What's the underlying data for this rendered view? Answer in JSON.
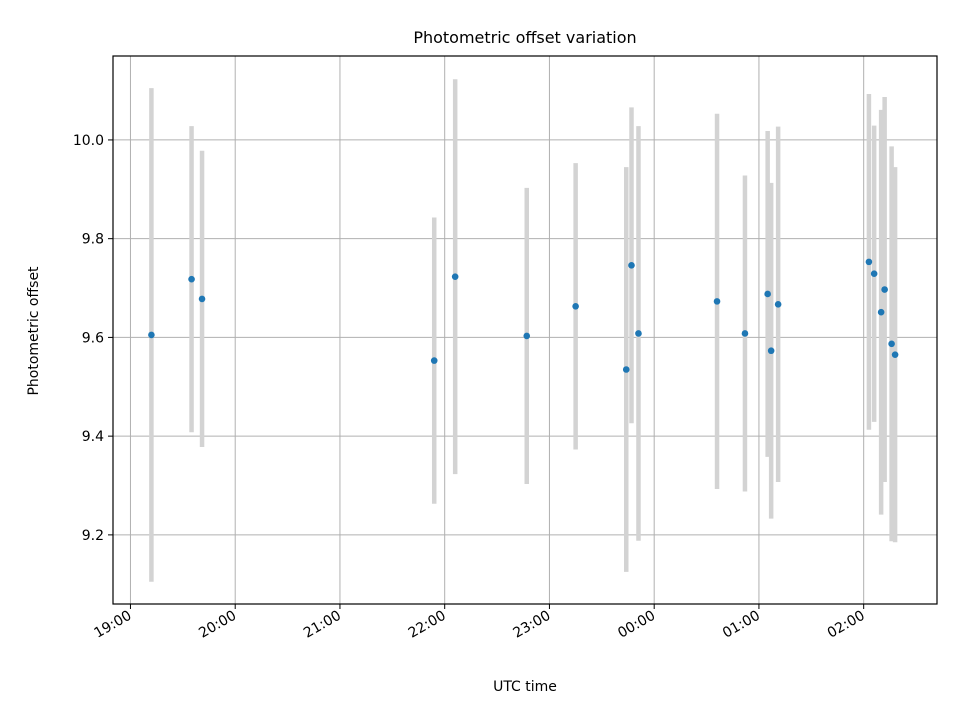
{
  "chart_data": {
    "type": "scatter",
    "title": "Photometric offset variation",
    "xlabel": "UTC time",
    "ylabel": "Photometric offset",
    "grid": true,
    "x_axis": {
      "unit": "time (HH:MM, UTC, spanning midnight)",
      "range": [
        "18:50",
        "02:42"
      ],
      "ticks": [
        "19:00",
        "20:00",
        "21:00",
        "22:00",
        "23:00",
        "00:00",
        "01:00",
        "02:00"
      ]
    },
    "y_axis": {
      "range": [
        9.06,
        10.17
      ],
      "ticks": [
        "9.2",
        "9.4",
        "9.6",
        "9.8",
        "10.0"
      ]
    },
    "colors": {
      "marker": "#1f77b4",
      "errorbar": "#d3d3d3",
      "grid": "#b0b0b0"
    },
    "points": [
      {
        "x": "19:12",
        "y": 9.605,
        "yerr": 0.5
      },
      {
        "x": "19:35",
        "y": 9.718,
        "yerr": 0.31
      },
      {
        "x": "19:41",
        "y": 9.678,
        "yerr": 0.3
      },
      {
        "x": "21:54",
        "y": 9.553,
        "yerr": 0.29
      },
      {
        "x": "22:06",
        "y": 9.723,
        "yerr": 0.4
      },
      {
        "x": "22:47",
        "y": 9.603,
        "yerr": 0.3
      },
      {
        "x": "23:15",
        "y": 9.663,
        "yerr": 0.29
      },
      {
        "x": "23:44",
        "y": 9.535,
        "yerr": 0.41
      },
      {
        "x": "23:47",
        "y": 9.746,
        "yerr": 0.32
      },
      {
        "x": "23:51",
        "y": 9.608,
        "yerr": 0.42
      },
      {
        "x": "00:36",
        "y": 9.673,
        "yerr": 0.38
      },
      {
        "x": "00:52",
        "y": 9.608,
        "yerr": 0.32
      },
      {
        "x": "01:05",
        "y": 9.688,
        "yerr": 0.33
      },
      {
        "x": "01:07",
        "y": 9.573,
        "yerr": 0.34
      },
      {
        "x": "01:11",
        "y": 9.667,
        "yerr": 0.36
      },
      {
        "x": "02:03",
        "y": 9.753,
        "yerr": 0.34
      },
      {
        "x": "02:06",
        "y": 9.729,
        "yerr": 0.3
      },
      {
        "x": "02:10",
        "y": 9.651,
        "yerr": 0.41
      },
      {
        "x": "02:12",
        "y": 9.697,
        "yerr": 0.39
      },
      {
        "x": "02:16",
        "y": 9.587,
        "yerr": 0.4
      },
      {
        "x": "02:18",
        "y": 9.565,
        "yerr": 0.38
      }
    ]
  }
}
